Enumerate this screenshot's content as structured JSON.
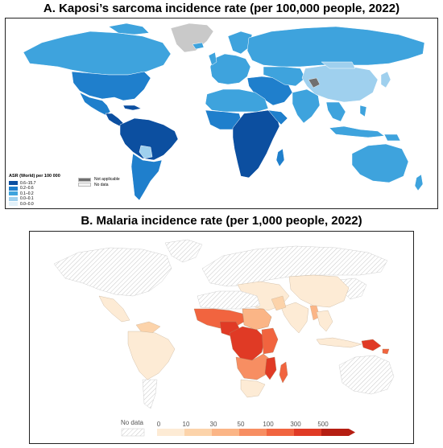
{
  "panel_a": {
    "title": "A. Kaposi’s sarcoma incidence rate (per 100,000 people, 2022)",
    "legend_title": "ASR (World) per 100 000",
    "legend_bins": [
      {
        "label": "0.6–15.7",
        "color": "#0c4fa0"
      },
      {
        "label": "0.2–0.6",
        "color": "#1f7fcc"
      },
      {
        "label": "0.1–0.2",
        "color": "#3ea3dd"
      },
      {
        "label": "0.0–0.1",
        "color": "#9fd0ee"
      },
      {
        "label": "0.0–0.0",
        "color": "#e3f2fb"
      }
    ],
    "not_applicable_label": "Not applicable",
    "not_applicable_color": "#707070",
    "no_data_label": "No data",
    "no_data_color": "#f4f4f4"
  },
  "panel_b": {
    "title": "B. Malaria incidence rate (per 1,000 people, 2022)",
    "no_data_label": "No data",
    "scale_ticks": [
      "0",
      "10",
      "30",
      "50",
      "100",
      "300",
      "500"
    ],
    "scale_colors": [
      "#fdebd5",
      "#fcd3aa",
      "#fbb586",
      "#f78e62",
      "#f1643f",
      "#e03a25",
      "#b51e12"
    ]
  }
}
